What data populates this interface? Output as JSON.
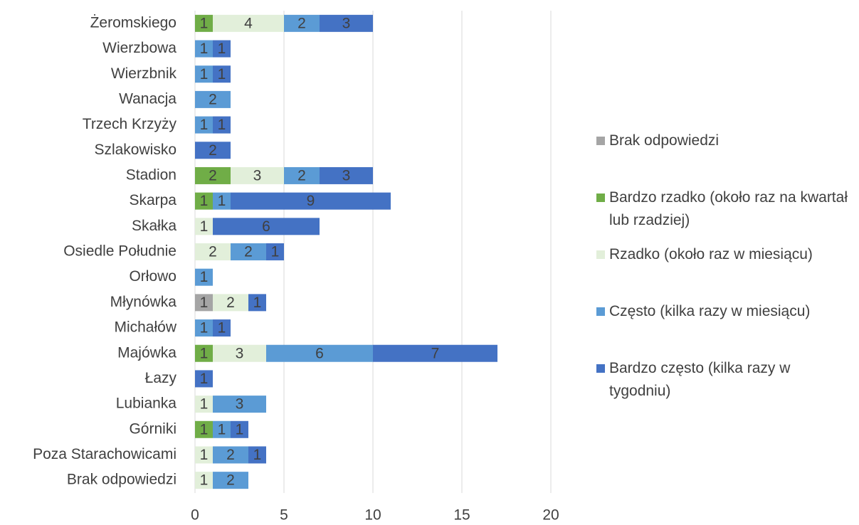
{
  "chart_data": {
    "type": "stacked-barh",
    "categories": [
      "Żeromskiego",
      "Wierzbowa",
      "Wierzbnik",
      "Wanacja",
      "Trzech Krzyży",
      "Szlakowisko",
      "Stadion",
      "Skarpa",
      "Skałka",
      "Osiedle Południe",
      "Orłowo",
      "Młynówka",
      "Michałów",
      "Majówka",
      "Łazy",
      "Lubianka",
      "Górniki",
      "Poza Starachowicami",
      "Brak odpowiedzi"
    ],
    "series": [
      {
        "name": "Brak odpowiedzi",
        "color": "#a5a5a5",
        "values": [
          0,
          0,
          0,
          0,
          0,
          0,
          0,
          0,
          0,
          0,
          0,
          1,
          0,
          0,
          0,
          0,
          0,
          0,
          0
        ]
      },
      {
        "name": "Bardzo rzadko (około raz na kwartał lub rzadziej)",
        "color": "#70ad47",
        "values": [
          1,
          0,
          0,
          0,
          0,
          0,
          2,
          1,
          0,
          0,
          0,
          0,
          0,
          1,
          0,
          0,
          1,
          0,
          0
        ]
      },
      {
        "name": "Rzadko (około raz w miesiącu)",
        "color": "#e2efda",
        "values": [
          4,
          0,
          0,
          0,
          0,
          0,
          3,
          0,
          1,
          2,
          0,
          2,
          0,
          3,
          0,
          1,
          0,
          1,
          1
        ]
      },
      {
        "name": "Często (kilka razy w miesiącu)",
        "color": "#5b9bd5",
        "values": [
          2,
          1,
          1,
          2,
          1,
          0,
          2,
          1,
          0,
          2,
          1,
          0,
          1,
          6,
          0,
          3,
          1,
          2,
          2
        ]
      },
      {
        "name": "Bardzo często (kilka razy w tygodniu)",
        "color": "#4472c4",
        "values": [
          3,
          1,
          1,
          0,
          1,
          2,
          3,
          9,
          6,
          1,
          0,
          1,
          1,
          7,
          1,
          0,
          1,
          1,
          0
        ]
      }
    ],
    "xlim": [
      0,
      20
    ],
    "xticks": [
      0,
      5,
      10,
      15,
      20
    ],
    "grid": true,
    "legend": "right"
  }
}
